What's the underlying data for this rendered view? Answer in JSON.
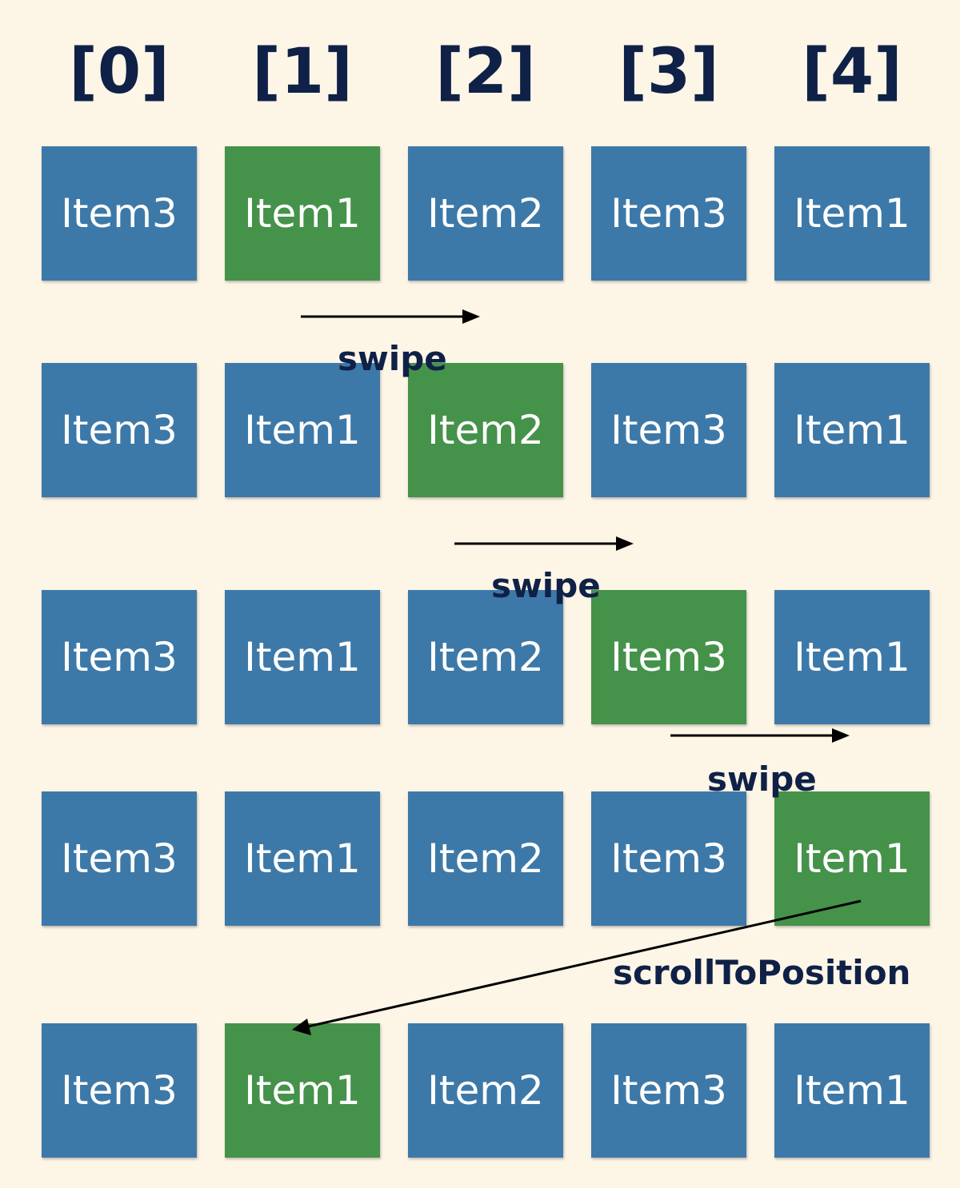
{
  "indices": [
    "[0]",
    "[1]",
    "[2]",
    "[3]",
    "[4]"
  ],
  "rows": [
    {
      "items": [
        "Item3",
        "Item1",
        "Item2",
        "Item3",
        "Item1"
      ],
      "highlight": 1
    },
    {
      "items": [
        "Item3",
        "Item1",
        "Item2",
        "Item3",
        "Item1"
      ],
      "highlight": 2
    },
    {
      "items": [
        "Item3",
        "Item1",
        "Item2",
        "Item3",
        "Item1"
      ],
      "highlight": 3
    },
    {
      "items": [
        "Item3",
        "Item1",
        "Item2",
        "Item3",
        "Item1"
      ],
      "highlight": 4
    },
    {
      "items": [
        "Item3",
        "Item1",
        "Item2",
        "Item3",
        "Item1"
      ],
      "highlight": 1
    }
  ],
  "transitions": [
    "swipe",
    "swipe",
    "swipe",
    "scrollToPosition"
  ],
  "colors": {
    "background": "#fdf5e6",
    "item": "#3d79a8",
    "highlight": "#45924a",
    "text": "#0f2147"
  }
}
